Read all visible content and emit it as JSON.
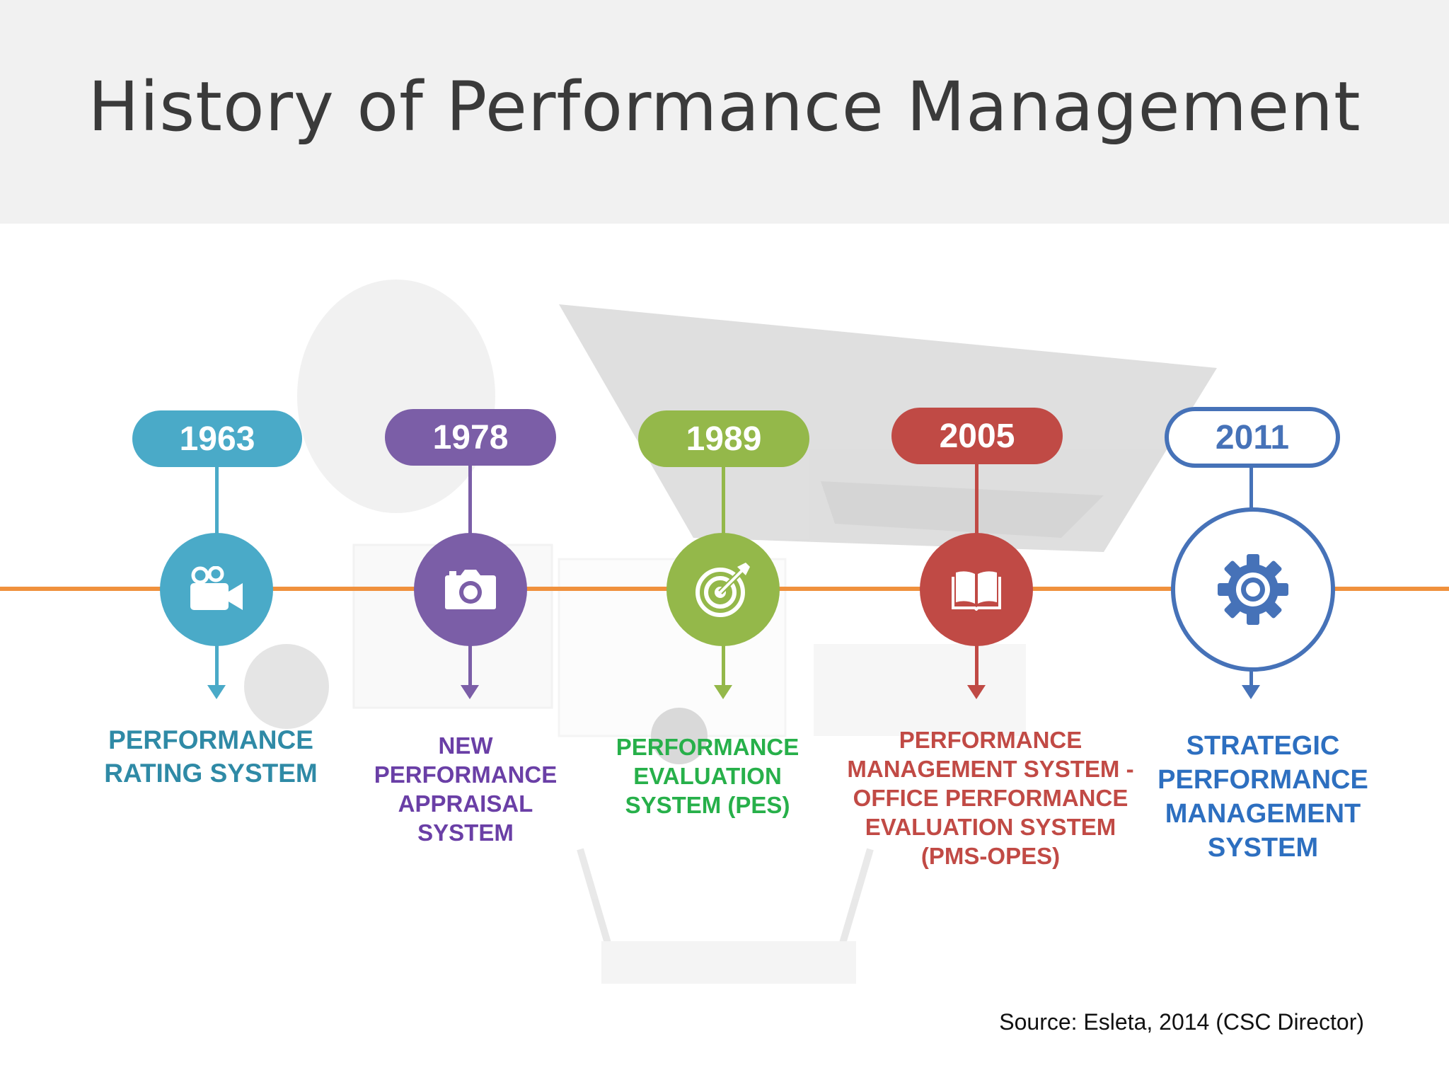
{
  "slide": {
    "title": "History of Performance Management",
    "source": "Source: Esleta, 2014 (CSC Director)"
  },
  "timeline": {
    "axis_color": "#f0913d",
    "milestones": [
      {
        "year": "1963",
        "color": "#4aaac8",
        "label_color": "#2f8aa6",
        "icon": "video-camera-icon",
        "label_lines": [
          "PERFORMANCE",
          "RATING SYSTEM"
        ]
      },
      {
        "year": "1978",
        "color": "#7b5ea7",
        "label_color": "#6a3fa6",
        "icon": "photo-camera-icon",
        "label_lines": [
          "NEW",
          "PERFORMANCE",
          "APPRAISAL",
          "SYSTEM"
        ]
      },
      {
        "year": "1989",
        "color": "#94b84a",
        "label_color": "#27b04a",
        "icon": "target-icon",
        "label_lines": [
          "PERFORMANCE",
          "EVALUATION",
          "SYSTEM (PES)"
        ]
      },
      {
        "year": "2005",
        "color": "#c04a45",
        "label_color": "#c14a45",
        "icon": "open-book-icon",
        "label_lines": [
          "PERFORMANCE",
          "MANAGEMENT SYSTEM -",
          "OFFICE PERFORMANCE",
          "EVALUATION SYSTEM",
          "(PMS-OPES)"
        ]
      },
      {
        "year": "2011",
        "color": "#4672b8",
        "label_color": "#2d6fc0",
        "icon": "gear-icon",
        "outlined": true,
        "label_lines": [
          "STRATEGIC",
          "PERFORMANCE",
          "MANAGEMENT",
          "SYSTEM"
        ]
      }
    ]
  }
}
